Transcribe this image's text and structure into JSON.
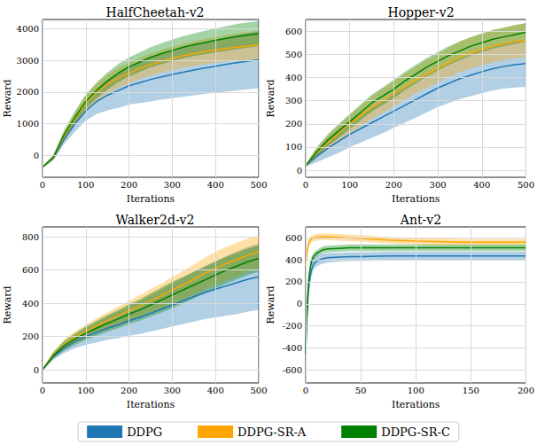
{
  "chart_data": [
    {
      "type": "line",
      "title": "HalfCheetah-v2",
      "x_label": "Iterations",
      "y_label": "Reward",
      "x": [
        0,
        25,
        50,
        75,
        100,
        125,
        150,
        175,
        200,
        225,
        250,
        275,
        300,
        325,
        350,
        375,
        400,
        425,
        450,
        475,
        500
      ],
      "series": [
        {
          "name": "DDPG",
          "color": "#1f77b4",
          "values": [
            -380,
            -100,
            500,
            1000,
            1400,
            1700,
            1900,
            2050,
            2200,
            2300,
            2400,
            2480,
            2560,
            2630,
            2700,
            2760,
            2820,
            2880,
            2930,
            2980,
            3020
          ],
          "lower": [
            -400,
            -160,
            350,
            750,
            1100,
            1300,
            1420,
            1500,
            1600,
            1650,
            1700,
            1760,
            1810,
            1850,
            1900,
            1940,
            1980,
            2020,
            2050,
            2090,
            2120
          ],
          "upper": [
            -360,
            -40,
            650,
            1250,
            1700,
            2100,
            2380,
            2600,
            2800,
            2950,
            3100,
            3200,
            3310,
            3410,
            3500,
            3580,
            3660,
            3740,
            3810,
            3870,
            3920
          ]
        },
        {
          "name": "DDPG-SR-A",
          "color": "#ffa500",
          "values": [
            -380,
            -80,
            600,
            1150,
            1650,
            2000,
            2250,
            2450,
            2600,
            2750,
            2870,
            2980,
            3070,
            3150,
            3220,
            3280,
            3330,
            3380,
            3420,
            3460,
            3500
          ],
          "lower": [
            -400,
            -140,
            450,
            950,
            1400,
            1720,
            1950,
            2130,
            2270,
            2410,
            2520,
            2620,
            2700,
            2770,
            2830,
            2880,
            2920,
            2960,
            2990,
            3020,
            3050
          ],
          "upper": [
            -360,
            -20,
            750,
            1350,
            1900,
            2280,
            2550,
            2770,
            2930,
            3090,
            3220,
            3340,
            3440,
            3530,
            3610,
            3680,
            3740,
            3800,
            3850,
            3900,
            3950
          ]
        },
        {
          "name": "DDPG-SR-C",
          "color": "#008000",
          "values": [
            -380,
            -60,
            650,
            1200,
            1700,
            2050,
            2350,
            2600,
            2800,
            2950,
            3100,
            3220,
            3320,
            3420,
            3500,
            3570,
            3640,
            3700,
            3760,
            3810,
            3850
          ],
          "lower": [
            -400,
            -120,
            500,
            1000,
            1470,
            1800,
            2080,
            2310,
            2500,
            2640,
            2780,
            2890,
            2980,
            3070,
            3140,
            3200,
            3260,
            3310,
            3360,
            3410,
            3450
          ],
          "upper": [
            -360,
            0,
            800,
            1400,
            1930,
            2300,
            2620,
            2890,
            3100,
            3260,
            3420,
            3550,
            3660,
            3770,
            3860,
            3940,
            4020,
            4090,
            4160,
            4210,
            4250
          ]
        }
      ],
      "xlim": [
        0,
        500
      ],
      "ylim": [
        -700,
        4300
      ],
      "xticks": [
        0,
        100,
        200,
        300,
        400,
        500
      ],
      "yticks": [
        0,
        1000,
        2000,
        3000,
        4000
      ],
      "grid": true,
      "legend": "bottom"
    },
    {
      "type": "line",
      "title": "Hopper-v2",
      "x_label": "Iterations",
      "y_label": "Reward",
      "x": [
        0,
        25,
        50,
        75,
        100,
        125,
        150,
        175,
        200,
        225,
        250,
        275,
        300,
        325,
        350,
        375,
        400,
        425,
        450,
        475,
        500
      ],
      "series": [
        {
          "name": "DDPG",
          "color": "#1f77b4",
          "values": [
            20,
            60,
            95,
            125,
            155,
            180,
            205,
            230,
            255,
            280,
            305,
            330,
            355,
            375,
            395,
            410,
            425,
            438,
            448,
            455,
            460
          ],
          "lower": [
            15,
            35,
            55,
            75,
            100,
            120,
            140,
            160,
            183,
            205,
            227,
            250,
            273,
            290,
            307,
            320,
            333,
            344,
            352,
            357,
            360
          ],
          "upper": [
            25,
            85,
            135,
            175,
            210,
            240,
            270,
            300,
            327,
            355,
            383,
            410,
            437,
            460,
            483,
            500,
            517,
            532,
            544,
            553,
            560
          ]
        },
        {
          "name": "DDPG-SR-A",
          "color": "#ffa500",
          "values": [
            20,
            75,
            120,
            160,
            200,
            235,
            270,
            300,
            330,
            360,
            390,
            415,
            440,
            465,
            490,
            505,
            520,
            535,
            545,
            555,
            560
          ],
          "lower": [
            15,
            55,
            90,
            125,
            160,
            190,
            220,
            248,
            276,
            304,
            332,
            355,
            378,
            401,
            424,
            438,
            452,
            465,
            475,
            483,
            486
          ],
          "upper": [
            25,
            95,
            150,
            195,
            240,
            280,
            320,
            352,
            384,
            416,
            448,
            475,
            502,
            529,
            556,
            572,
            588,
            605,
            615,
            627,
            634
          ]
        },
        {
          "name": "DDPG-SR-C",
          "color": "#008000",
          "values": [
            20,
            80,
            130,
            170,
            210,
            250,
            290,
            320,
            350,
            385,
            415,
            445,
            470,
            495,
            515,
            535,
            550,
            565,
            575,
            585,
            595
          ],
          "lower": [
            15,
            60,
            105,
            140,
            178,
            216,
            254,
            282,
            310,
            345,
            375,
            405,
            430,
            455,
            475,
            495,
            510,
            525,
            535,
            545,
            555
          ],
          "upper": [
            25,
            100,
            155,
            200,
            242,
            284,
            326,
            358,
            390,
            425,
            455,
            485,
            510,
            535,
            555,
            575,
            590,
            605,
            615,
            625,
            635
          ]
        }
      ],
      "xlim": [
        0,
        500
      ],
      "ylim": [
        -30,
        650
      ],
      "xticks": [
        0,
        100,
        200,
        300,
        400,
        500
      ],
      "yticks": [
        0,
        100,
        200,
        300,
        400,
        500,
        600
      ],
      "grid": true,
      "legend": "bottom"
    },
    {
      "type": "line",
      "title": "Walker2d-v2",
      "x_label": "Iterations",
      "y_label": "Reward",
      "x": [
        0,
        25,
        50,
        75,
        100,
        125,
        150,
        175,
        200,
        225,
        250,
        275,
        300,
        325,
        350,
        375,
        400,
        425,
        450,
        475,
        500
      ],
      "series": [
        {
          "name": "DDPG",
          "color": "#1f77b4",
          "values": [
            0,
            80,
            130,
            170,
            200,
            225,
            250,
            270,
            295,
            315,
            340,
            365,
            390,
            415,
            440,
            465,
            485,
            505,
            525,
            545,
            560
          ],
          "lower": [
            -5,
            60,
            100,
            130,
            150,
            165,
            180,
            190,
            205,
            215,
            230,
            245,
            260,
            275,
            290,
            305,
            315,
            325,
            335,
            350,
            360
          ],
          "upper": [
            5,
            100,
            160,
            210,
            250,
            285,
            320,
            350,
            385,
            415,
            450,
            485,
            520,
            555,
            590,
            625,
            655,
            685,
            715,
            740,
            760
          ]
        },
        {
          "name": "DDPG-SR-A",
          "color": "#ffa500",
          "values": [
            0,
            90,
            150,
            195,
            230,
            265,
            295,
            325,
            355,
            385,
            415,
            445,
            480,
            510,
            545,
            580,
            610,
            640,
            665,
            690,
            710
          ],
          "lower": [
            -5,
            70,
            120,
            160,
            190,
            220,
            245,
            270,
            295,
            320,
            345,
            370,
            400,
            425,
            455,
            485,
            510,
            540,
            565,
            590,
            610
          ],
          "upper": [
            5,
            110,
            180,
            230,
            270,
            310,
            345,
            380,
            415,
            450,
            485,
            520,
            560,
            595,
            635,
            675,
            710,
            740,
            765,
            790,
            810
          ]
        },
        {
          "name": "DDPG-SR-C",
          "color": "#008000",
          "values": [
            0,
            85,
            145,
            185,
            220,
            250,
            280,
            305,
            335,
            360,
            390,
            420,
            450,
            480,
            510,
            540,
            570,
            600,
            625,
            650,
            670
          ],
          "lower": [
            -5,
            65,
            115,
            150,
            180,
            205,
            230,
            250,
            275,
            295,
            320,
            345,
            370,
            400,
            430,
            460,
            490,
            520,
            545,
            570,
            590
          ],
          "upper": [
            5,
            105,
            175,
            220,
            260,
            295,
            330,
            360,
            395,
            425,
            460,
            495,
            530,
            560,
            590,
            620,
            650,
            680,
            705,
            730,
            750
          ]
        }
      ],
      "xlim": [
        0,
        500
      ],
      "ylim": [
        -80,
        860
      ],
      "xticks": [
        0,
        100,
        200,
        300,
        400,
        500
      ],
      "yticks": [
        0,
        200,
        400,
        600,
        800
      ],
      "grid": true,
      "legend": "bottom"
    },
    {
      "type": "line",
      "title": "Ant-v2",
      "x_label": "Iterations",
      "y_label": "Reward",
      "x": [
        0,
        1,
        2,
        3,
        5,
        7,
        10,
        15,
        20,
        30,
        40,
        50,
        75,
        100,
        125,
        150,
        175,
        200
      ],
      "series": [
        {
          "name": "DDPG",
          "color": "#1f77b4",
          "values": [
            -450,
            -150,
            50,
            180,
            300,
            360,
            390,
            410,
            420,
            425,
            430,
            430,
            435,
            435,
            435,
            435,
            435,
            435
          ],
          "lower": [
            -500,
            -230,
            -30,
            110,
            240,
            310,
            340,
            365,
            375,
            385,
            390,
            390,
            395,
            395,
            395,
            395,
            395,
            395
          ],
          "upper": [
            -400,
            -70,
            130,
            250,
            360,
            410,
            440,
            455,
            465,
            465,
            470,
            470,
            475,
            475,
            475,
            475,
            475,
            475
          ]
        },
        {
          "name": "DDPG-SR-A",
          "color": "#ffa500",
          "values": [
            350,
            450,
            520,
            560,
            590,
            600,
            605,
            610,
            610,
            605,
            600,
            595,
            580,
            570,
            565,
            560,
            560,
            560
          ],
          "lower": [
            290,
            400,
            480,
            525,
            560,
            570,
            575,
            580,
            580,
            575,
            570,
            565,
            550,
            540,
            535,
            530,
            530,
            530
          ],
          "upper": [
            410,
            500,
            560,
            595,
            620,
            630,
            635,
            640,
            640,
            635,
            630,
            625,
            610,
            600,
            595,
            590,
            590,
            590
          ]
        },
        {
          "name": "DDPG-SR-C",
          "color": "#008000",
          "values": [
            -450,
            -100,
            100,
            250,
            380,
            430,
            460,
            490,
            500,
            505,
            510,
            510,
            510,
            510,
            510,
            510,
            510,
            510
          ],
          "lower": [
            -500,
            -180,
            20,
            190,
            340,
            395,
            430,
            460,
            470,
            475,
            480,
            480,
            480,
            480,
            480,
            480,
            480,
            480
          ],
          "upper": [
            -400,
            -20,
            180,
            310,
            420,
            465,
            490,
            520,
            530,
            535,
            540,
            540,
            540,
            540,
            540,
            540,
            540,
            540
          ]
        }
      ],
      "xlim": [
        0,
        200
      ],
      "ylim": [
        -720,
        700
      ],
      "xticks": [
        0,
        50,
        100,
        150,
        200
      ],
      "yticks": [
        -600,
        -400,
        -200,
        0,
        200,
        400,
        600
      ],
      "grid": true,
      "legend": "bottom"
    }
  ]
}
